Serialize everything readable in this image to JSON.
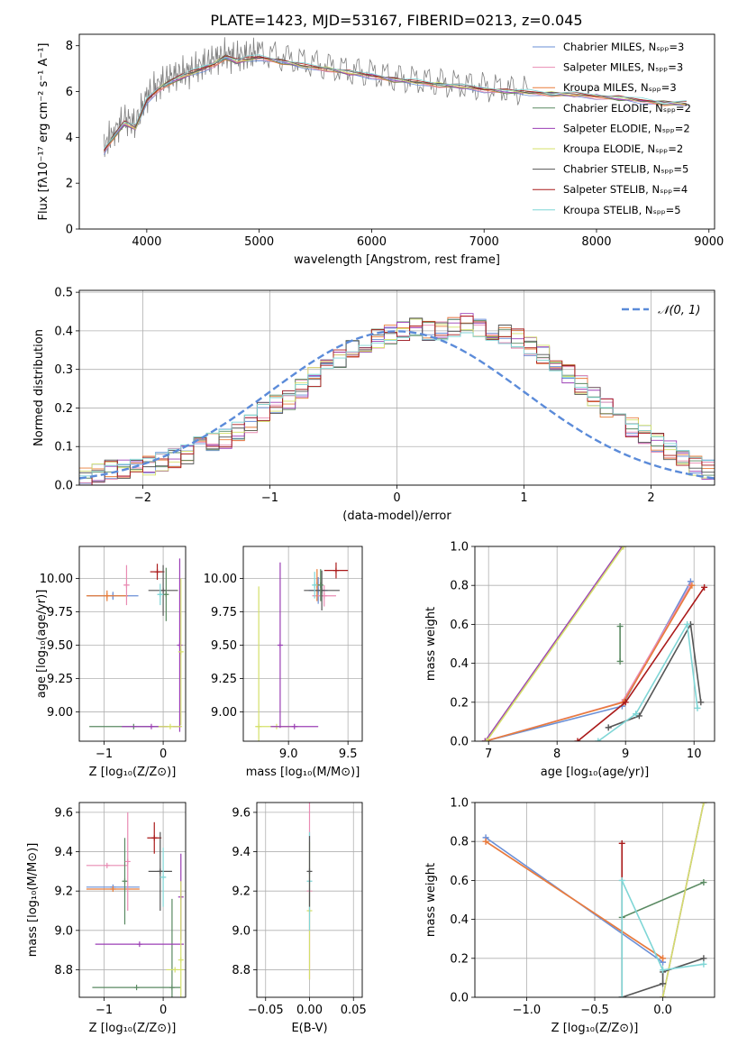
{
  "figure_title": "PLATE=1423, MJD=53167, FIBERID=0213, z=0.045",
  "colors": [
    "#6a8fd6",
    "#e98bb3",
    "#e87d3a",
    "#5a8a62",
    "#9b3fb5",
    "#d4e06a",
    "#555555",
    "#aa1a1a",
    "#7fd6d6"
  ],
  "chart_data": [
    {
      "type": "line",
      "panel": "spectrum",
      "xlabel": "wavelength [Angstrom, rest frame]",
      "ylabel": "Flux [fλ10⁻¹⁷ erg cm⁻² s⁻¹ A⁻¹]",
      "xlim": [
        3400,
        9050
      ],
      "ylim": [
        0,
        8.5
      ],
      "xticks": [
        4000,
        5000,
        6000,
        7000,
        8000,
        9000
      ],
      "yticks": [
        0,
        2,
        4,
        6,
        8
      ],
      "xtick_labels": [
        "4000",
        "5000",
        "6000",
        "7000",
        "8000",
        "9000"
      ],
      "ytick_labels": [
        "0",
        "2",
        "4",
        "6",
        "8"
      ],
      "data_line": {
        "color": "#808080",
        "x": [
          3620,
          3700,
          3800,
          3900,
          4000,
          4100,
          4200,
          4300,
          4400,
          4500,
          4600,
          4700,
          4800,
          4900,
          5000,
          5200,
          5400,
          5600,
          5800,
          6000,
          6200,
          6400,
          6600,
          6800,
          7000,
          7200,
          7400
        ],
        "y": [
          3.6,
          4.2,
          4.8,
          4.6,
          5.8,
          6.3,
          6.6,
          6.8,
          6.9,
          7.2,
          7.4,
          7.6,
          7.5,
          7.6,
          7.7,
          7.5,
          7.3,
          7.1,
          6.9,
          6.8,
          6.6,
          6.5,
          6.4,
          6.3,
          6.2,
          6.1,
          6.0
        ]
      },
      "model_line": {
        "x": [
          3620,
          3700,
          3800,
          3900,
          4000,
          4100,
          4200,
          4300,
          4400,
          4500,
          4600,
          4700,
          4800,
          4900,
          5000,
          5200,
          5400,
          5600,
          5800,
          6000,
          6200,
          6400,
          6600,
          6800,
          7000,
          7200,
          7400,
          7600,
          7800,
          8000,
          8200,
          8400,
          8600,
          8800
        ],
        "y": [
          3.4,
          4.0,
          4.6,
          4.4,
          5.6,
          6.1,
          6.4,
          6.6,
          6.8,
          7.0,
          7.2,
          7.5,
          7.3,
          7.4,
          7.5,
          7.3,
          7.1,
          7.0,
          6.8,
          6.7,
          6.5,
          6.4,
          6.3,
          6.2,
          6.1,
          6.0,
          5.95,
          5.9,
          5.85,
          5.8,
          5.7,
          5.6,
          5.5,
          5.45
        ]
      },
      "legend_position": "upper-right",
      "legend": [
        {
          "label": "Chabrier MILES, Nₛₚₚ=3",
          "color": "#6a8fd6"
        },
        {
          "label": "Salpeter MILES, Nₛₚₚ=3",
          "color": "#e98bb3"
        },
        {
          "label": "Kroupa MILES, Nₛₚₚ=3",
          "color": "#e87d3a"
        },
        {
          "label": "Chabrier ELODIE, Nₛₚₚ=2",
          "color": "#5a8a62"
        },
        {
          "label": "Salpeter ELODIE, Nₛₚₚ=2",
          "color": "#9b3fb5"
        },
        {
          "label": "Kroupa ELODIE, Nₛₚₚ=2",
          "color": "#d4e06a"
        },
        {
          "label": "Chabrier STELIB, Nₛₚₚ=5",
          "color": "#555555"
        },
        {
          "label": "Salpeter STELIB, Nₛₚₚ=4",
          "color": "#aa1a1a"
        },
        {
          "label": "Kroupa STELIB, Nₛₚₚ=5",
          "color": "#7fd6d6"
        }
      ]
    },
    {
      "type": "bar",
      "panel": "histogram",
      "xlabel": "(data-model)/error",
      "ylabel": "Normed distribution",
      "xlim": [
        -2.5,
        2.5
      ],
      "ylim": [
        0,
        0.505
      ],
      "xticks": [
        -2,
        -1,
        0,
        1,
        2
      ],
      "yticks": [
        0,
        0.1,
        0.2,
        0.3,
        0.4,
        0.5
      ],
      "xtick_labels": [
        "−2",
        "−1",
        "0",
        "1",
        "2"
      ],
      "ytick_labels": [
        "0.0",
        "0.1",
        "0.2",
        "0.3",
        "0.4",
        "0.5"
      ],
      "bin_width": 0.1,
      "bin_start": -2.5,
      "values": [
        0.02,
        0.03,
        0.04,
        0.04,
        0.05,
        0.05,
        0.06,
        0.07,
        0.08,
        0.1,
        0.11,
        0.12,
        0.14,
        0.16,
        0.19,
        0.21,
        0.22,
        0.25,
        0.28,
        0.3,
        0.33,
        0.35,
        0.37,
        0.38,
        0.39,
        0.4,
        0.41,
        0.4,
        0.4,
        0.41,
        0.42,
        0.41,
        0.4,
        0.39,
        0.38,
        0.36,
        0.34,
        0.31,
        0.29,
        0.26,
        0.23,
        0.2,
        0.18,
        0.15,
        0.13,
        0.11,
        0.09,
        0.07,
        0.05,
        0.04
      ],
      "gaussian_label": "𝒩(0, 1)",
      "gaussian_color": "#5b8bd9",
      "legend_position": "upper-right"
    },
    {
      "type": "scatter",
      "panel": "age-vs-Z",
      "xlabel": "Z [log₁₀(Z/Z⊙)]",
      "ylabel": "age  [log₁₀(age/yr)]",
      "xlim": [
        -1.42,
        0.38
      ],
      "ylim": [
        8.78,
        10.24
      ],
      "xticks": [
        -1,
        0
      ],
      "yticks": [
        9.0,
        9.25,
        9.5,
        9.75,
        10.0
      ],
      "xtick_labels": [
        "−1",
        "0"
      ],
      "ytick_labels": [
        "9.00",
        "9.25",
        "9.50",
        "9.75",
        "10.00"
      ],
      "points": [
        {
          "x": -0.85,
          "y": 9.87,
          "xerr": 0.43,
          "yerr": 0.03,
          "color": "#6a8fd6"
        },
        {
          "x": -0.95,
          "y": 9.87,
          "xerr": 0.35,
          "yerr": 0.04,
          "color": "#e87d3a"
        },
        {
          "x": -0.62,
          "y": 9.95,
          "xerr": 0.05,
          "yerr": 0.15,
          "color": "#e98bb3"
        },
        {
          "x": -0.1,
          "y": 10.05,
          "xerr": 0.12,
          "yerr": 0.06,
          "color": "#aa1a1a"
        },
        {
          "x": 0.0,
          "y": 9.91,
          "xerr": 0.25,
          "yerr": 0.19,
          "color": "#555555"
        },
        {
          "x": 0.05,
          "y": 9.88,
          "xerr": 0.02,
          "yerr": 0.2,
          "color": "#5a8a62"
        },
        {
          "x": -0.5,
          "y": 8.89,
          "xerr": 0.75,
          "yerr": 0.0,
          "color": "#5a8a62"
        },
        {
          "x": -0.2,
          "y": 8.89,
          "xerr": 0.5,
          "yerr": 0.0,
          "color": "#9b3fb5"
        },
        {
          "x": 0.28,
          "y": 9.5,
          "xerr": 0.0,
          "yerr": 0.65,
          "color": "#9b3fb5"
        },
        {
          "x": 0.12,
          "y": 8.89,
          "xerr": 0.2,
          "yerr": 0.0,
          "color": "#d4e06a"
        },
        {
          "x": 0.3,
          "y": 9.45,
          "xerr": 0.0,
          "yerr": 0.55,
          "color": "#d4e06a"
        },
        {
          "x": -0.05,
          "y": 9.88,
          "xerr": 0.05,
          "yerr": 0.08,
          "color": "#7fd6d6"
        }
      ]
    },
    {
      "type": "scatter",
      "panel": "age-vs-mass",
      "xlabel": "mass [log₁₀(M/M⊙)]",
      "ylabel": "",
      "xlim": [
        8.62,
        9.62
      ],
      "ylim": [
        8.78,
        10.24
      ],
      "xticks": [
        9.0,
        9.5
      ],
      "yticks": [
        9.0,
        9.25,
        9.5,
        9.75,
        10.0
      ],
      "xtick_labels": [
        "9.0",
        "9.5"
      ],
      "ytick_labels": [
        "9.00",
        "9.25",
        "9.50",
        "9.75",
        "10.00"
      ],
      "points": [
        {
          "x": 8.75,
          "y": 8.89,
          "xerr": 0.0,
          "yerr": 1.05,
          "color": "#d4e06a"
        },
        {
          "x": 8.9,
          "y": 8.89,
          "xerr": 0.18,
          "yerr": 0.0,
          "color": "#d4e06a"
        },
        {
          "x": 8.93,
          "y": 9.5,
          "xerr": 0.0,
          "yerr": 0.62,
          "color": "#9b3fb5"
        },
        {
          "x": 9.05,
          "y": 8.89,
          "xerr": 0.2,
          "yerr": 0.0,
          "color": "#9b3fb5"
        },
        {
          "x": 9.25,
          "y": 9.91,
          "xerr": 0.08,
          "yerr": 0.1,
          "color": "#6a8fd6"
        },
        {
          "x": 9.3,
          "y": 9.87,
          "xerr": 0.1,
          "yerr": 0.08,
          "color": "#e98bb3"
        },
        {
          "x": 9.24,
          "y": 9.95,
          "xerr": 0.02,
          "yerr": 0.12,
          "color": "#e87d3a"
        },
        {
          "x": 9.4,
          "y": 10.06,
          "xerr": 0.1,
          "yerr": 0.06,
          "color": "#aa1a1a"
        },
        {
          "x": 9.28,
          "y": 9.91,
          "xerr": 0.15,
          "yerr": 0.15,
          "color": "#555555"
        },
        {
          "x": 9.22,
          "y": 9.95,
          "xerr": 0.02,
          "yerr": 0.1,
          "color": "#7fd6d6"
        },
        {
          "x": 9.27,
          "y": 9.95,
          "xerr": 0.02,
          "yerr": 0.12,
          "color": "#5a8a62"
        }
      ]
    },
    {
      "type": "line",
      "panel": "mass-weight-vs-age",
      "xlabel": "age  [log₁₀(age/yr)]",
      "ylabel": "mass weight",
      "xlim": [
        6.8,
        10.3
      ],
      "ylim": [
        0,
        1
      ],
      "xticks": [
        7,
        8,
        9,
        10
      ],
      "yticks": [
        0,
        0.2,
        0.4,
        0.6,
        0.8,
        1.0
      ],
      "xtick_labels": [
        "7",
        "8",
        "9",
        "10"
      ],
      "ytick_labels": [
        "0.0",
        "0.2",
        "0.4",
        "0.6",
        "0.8",
        "1.0"
      ],
      "series": [
        {
          "x": [
            6.95,
            8.95,
            9.95
          ],
          "y": [
            0.0,
            0.18,
            0.82
          ],
          "color": "#6a8fd6"
        },
        {
          "x": [
            6.95,
            8.95,
            9.95
          ],
          "y": [
            0.0,
            0.2,
            0.8
          ],
          "color": "#e98bb3"
        },
        {
          "x": [
            6.95,
            8.97,
            9.97
          ],
          "y": [
            0.0,
            0.2,
            0.8
          ],
          "color": "#e87d3a"
        },
        {
          "x": [
            8.92,
            8.92
          ],
          "y": [
            0.41,
            0.59
          ],
          "color": "#5a8a62"
        },
        {
          "x": [
            6.95,
            8.95
          ],
          "y": [
            0.0,
            1.0
          ],
          "color": "#9b3fb5"
        },
        {
          "x": [
            6.97,
            8.97
          ],
          "y": [
            0.0,
            1.0
          ],
          "color": "#d4e06a"
        },
        {
          "x": [
            8.75,
            9.2,
            9.95,
            10.1
          ],
          "y": [
            0.07,
            0.13,
            0.6,
            0.2
          ],
          "color": "#555555"
        },
        {
          "x": [
            8.3,
            9.0,
            10.15
          ],
          "y": [
            0.0,
            0.2,
            0.79
          ],
          "color": "#aa1a1a"
        },
        {
          "x": [
            8.6,
            9.15,
            9.9,
            10.05
          ],
          "y": [
            0.0,
            0.14,
            0.6,
            0.17
          ],
          "color": "#7fd6d6"
        }
      ]
    },
    {
      "type": "scatter",
      "panel": "mass-vs-Z",
      "xlabel": "Z [log₁₀(Z/Z⊙)]",
      "ylabel": "mass [log₁₀(M/M⊙)]",
      "xlim": [
        -1.42,
        0.38
      ],
      "ylim": [
        8.66,
        9.65
      ],
      "xticks": [
        -1,
        0
      ],
      "yticks": [
        8.8,
        9.0,
        9.2,
        9.4,
        9.6
      ],
      "xtick_labels": [
        "−1",
        "0"
      ],
      "ytick_labels": [
        "8.8",
        "9.0",
        "9.2",
        "9.4",
        "9.6"
      ],
      "points": [
        {
          "x": -0.85,
          "y": 9.22,
          "xerr": 0.45,
          "yerr": 0.0,
          "color": "#6a8fd6"
        },
        {
          "x": -0.85,
          "y": 9.21,
          "xerr": 0.45,
          "yerr": 0.0,
          "color": "#e87d3a"
        },
        {
          "x": -0.95,
          "y": 9.33,
          "xerr": 0.35,
          "yerr": 0.0,
          "color": "#e98bb3"
        },
        {
          "x": -0.65,
          "y": 9.25,
          "xerr": 0.0,
          "yerr": 0.22,
          "color": "#5a8a62"
        },
        {
          "x": -0.6,
          "y": 9.35,
          "xerr": 0.0,
          "yerr": 0.25,
          "color": "#e98bb3"
        },
        {
          "x": -0.15,
          "y": 9.47,
          "xerr": 0.12,
          "yerr": 0.08,
          "color": "#aa1a1a"
        },
        {
          "x": -0.05,
          "y": 9.3,
          "xerr": 0.2,
          "yerr": 0.2,
          "color": "#555555"
        },
        {
          "x": 0.0,
          "y": 9.27,
          "xerr": 0.05,
          "yerr": 0.15,
          "color": "#7fd6d6"
        },
        {
          "x": -0.45,
          "y": 8.71,
          "xerr": 0.75,
          "yerr": 0.0,
          "color": "#5a8a62"
        },
        {
          "x": 0.15,
          "y": 8.71,
          "xerr": 0.0,
          "yerr": 0.45,
          "color": "#5a8a62"
        },
        {
          "x": -0.4,
          "y": 8.93,
          "xerr": 0.75,
          "yerr": 0.0,
          "color": "#9b3fb5"
        },
        {
          "x": 0.3,
          "y": 9.17,
          "xerr": 0.0,
          "yerr": 0.22,
          "color": "#9b3fb5"
        },
        {
          "x": 0.2,
          "y": 8.8,
          "xerr": 0.15,
          "yerr": 0.0,
          "color": "#d4e06a"
        },
        {
          "x": 0.3,
          "y": 8.85,
          "xerr": 0.0,
          "yerr": 0.4,
          "color": "#d4e06a"
        }
      ]
    },
    {
      "type": "scatter",
      "panel": "mass-vs-EBV",
      "xlabel": "E(B-V)",
      "ylabel": "",
      "xlim": [
        -0.06,
        0.06
      ],
      "ylim": [
        8.66,
        9.65
      ],
      "xticks": [
        -0.05,
        0.0,
        0.05
      ],
      "yticks": [
        8.8,
        9.0,
        9.2,
        9.4,
        9.6
      ],
      "xtick_labels": [
        "−0.05",
        "0.00",
        "0.05"
      ],
      "ytick_labels": [
        "8.8",
        "9.0",
        "9.2",
        "9.4",
        "9.6"
      ],
      "points": [
        {
          "x": 0.0,
          "y": 9.2,
          "xerr": 0.0,
          "yerr": 0.45,
          "color": "#e98bb3"
        },
        {
          "x": 0.0,
          "y": 9.1,
          "xerr": 0.0,
          "yerr": 0.35,
          "color": "#d4e06a"
        },
        {
          "x": 0.0,
          "y": 9.25,
          "xerr": 0.0,
          "yerr": 0.25,
          "color": "#7fd6d6"
        },
        {
          "x": 0.0,
          "y": 9.3,
          "xerr": 0.0,
          "yerr": 0.18,
          "color": "#555555"
        }
      ]
    },
    {
      "type": "line",
      "panel": "mass-weight-vs-Z",
      "xlabel": "Z [log₁₀(Z/Z⊙)]",
      "ylabel": "mass weight",
      "xlim": [
        -1.38,
        0.38
      ],
      "ylim": [
        0,
        1
      ],
      "xticks": [
        -1.0,
        -0.5,
        0.0
      ],
      "yticks": [
        0,
        0.2,
        0.4,
        0.6,
        0.8,
        1.0
      ],
      "xtick_labels": [
        "−1.0",
        "−0.5",
        "0.0"
      ],
      "ytick_labels": [
        "0.0",
        "0.2",
        "0.4",
        "0.6",
        "0.8",
        "1.0"
      ],
      "series": [
        {
          "x": [
            -1.3,
            0.0
          ],
          "y": [
            0.82,
            0.18
          ],
          "color": "#6a8fd6"
        },
        {
          "x": [
            -1.3,
            0.0
          ],
          "y": [
            0.8,
            0.2
          ],
          "color": "#e98bb3"
        },
        {
          "x": [
            -1.3,
            0.0
          ],
          "y": [
            0.8,
            0.2
          ],
          "color": "#e87d3a"
        },
        {
          "x": [
            -0.3,
            0.3
          ],
          "y": [
            0.41,
            0.59
          ],
          "color": "#5a8a62"
        },
        {
          "x": [
            0.0,
            0.3
          ],
          "y": [
            0.0,
            1.0
          ],
          "color": "#9b3fb5"
        },
        {
          "x": [
            0.0,
            0.3
          ],
          "y": [
            0.0,
            1.0
          ],
          "color": "#d4e06a"
        },
        {
          "x": [
            -0.3,
            0.0,
            0.0,
            0.3
          ],
          "y": [
            0.0,
            0.07,
            0.13,
            0.2
          ],
          "color": "#555555"
        },
        {
          "x": [
            -0.3,
            -0.3
          ],
          "y": [
            0.0,
            0.79
          ],
          "color": "#aa1a1a"
        },
        {
          "x": [
            -0.3,
            -0.3,
            0.0,
            0.3
          ],
          "y": [
            0.0,
            0.6,
            0.14,
            0.17
          ],
          "color": "#7fd6d6"
        }
      ]
    }
  ]
}
